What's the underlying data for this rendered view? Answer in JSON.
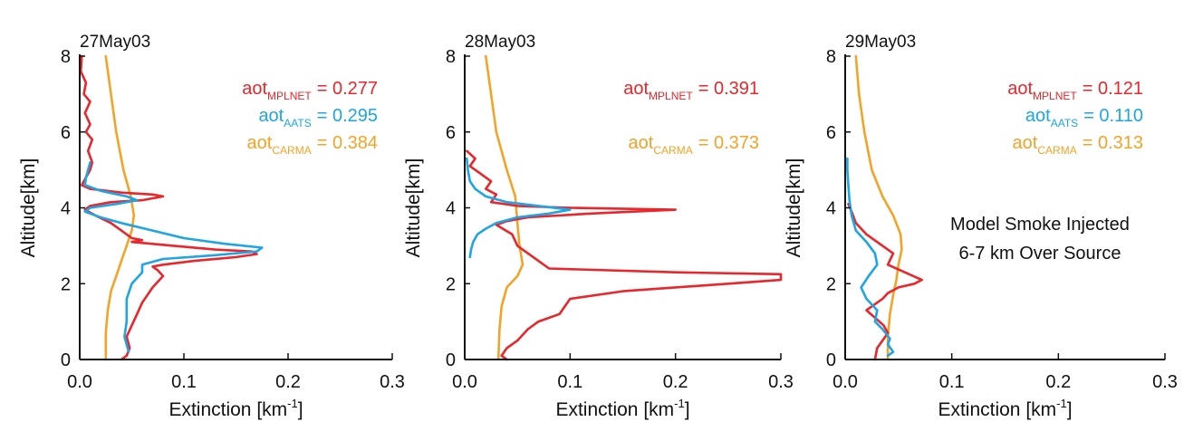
{
  "chart_data": [
    {
      "type": "line",
      "title": "27May03",
      "xlabel_main": "Extinction [km",
      "xlabel_sup": "-1",
      "xlabel_tail": "]",
      "ylabel": "Altitude[km]",
      "xlim": [
        0,
        0.3
      ],
      "ylim": [
        0,
        8
      ],
      "xticks": [
        "0.0",
        "0.1",
        "0.2",
        "0.3"
      ],
      "yticks": [
        "0",
        "2",
        "4",
        "6",
        "8"
      ],
      "annotations": [
        {
          "base": "aot",
          "sub": "MPLNET",
          "value": "= 0.277",
          "color": "#e8262b"
        },
        {
          "base": "aot",
          "sub": "AATS",
          "value": "= 0.295",
          "color": "#1fa4e6"
        },
        {
          "base": "aot",
          "sub": "CARMA",
          "value": "= 0.384",
          "color": "#f3a326"
        }
      ],
      "note": [],
      "series": [
        {
          "color": "#f3a326",
          "points": [
            [
              0.025,
              8
            ],
            [
              0.03,
              7
            ],
            [
              0.035,
              6
            ],
            [
              0.042,
              5
            ],
            [
              0.049,
              4.3
            ],
            [
              0.052,
              3.8
            ],
            [
              0.05,
              3.4
            ],
            [
              0.045,
              3
            ],
            [
              0.04,
              2.6
            ],
            [
              0.035,
              2.2
            ],
            [
              0.03,
              1.8
            ],
            [
              0.027,
              1.3
            ],
            [
              0.025,
              0.7
            ],
            [
              0.025,
              0
            ]
          ]
        },
        {
          "color": "#e8262b",
          "points": [
            [
              0.002,
              8
            ],
            [
              0.001,
              7.6
            ],
            [
              0.006,
              7.3
            ],
            [
              0.004,
              7
            ],
            [
              0.01,
              6.8
            ],
            [
              0.005,
              6.5
            ],
            [
              0.01,
              6.2
            ],
            [
              0.006,
              6
            ],
            [
              0.012,
              5.8
            ],
            [
              0.008,
              5.5
            ],
            [
              0.012,
              5.2
            ],
            [
              0.01,
              5
            ],
            [
              0.006,
              4.8
            ],
            [
              0.002,
              4.6
            ],
            [
              0.01,
              4.5
            ],
            [
              0.04,
              4.4
            ],
            [
              0.07,
              4.35
            ],
            [
              0.08,
              4.3
            ],
            [
              0.06,
              4.2
            ],
            [
              0.03,
              4.15
            ],
            [
              0.01,
              4.05
            ],
            [
              0.005,
              3.95
            ],
            [
              0.015,
              3.8
            ],
            [
              0.03,
              3.6
            ],
            [
              0.04,
              3.4
            ],
            [
              0.05,
              3.2
            ],
            [
              0.06,
              3.15
            ],
            [
              0.05,
              3.1
            ],
            [
              0.09,
              3
            ],
            [
              0.13,
              2.9
            ],
            [
              0.165,
              2.85
            ],
            [
              0.17,
              2.78
            ],
            [
              0.15,
              2.7
            ],
            [
              0.11,
              2.6
            ],
            [
              0.08,
              2.5
            ],
            [
              0.07,
              2.45
            ],
            [
              0.075,
              2.35
            ],
            [
              0.08,
              2.2
            ],
            [
              0.07,
              1.9
            ],
            [
              0.06,
              1.5
            ],
            [
              0.055,
              1.2
            ],
            [
              0.05,
              0.9
            ],
            [
              0.045,
              0.6
            ],
            [
              0.048,
              0.3
            ],
            [
              0.045,
              0.1
            ],
            [
              0.04,
              0
            ]
          ]
        },
        {
          "color": "#1fa4e6",
          "points": [
            [
              0.01,
              5.2
            ],
            [
              0.008,
              5
            ],
            [
              0.006,
              4.8
            ],
            [
              0.005,
              4.6
            ],
            [
              0.02,
              4.45
            ],
            [
              0.045,
              4.3
            ],
            [
              0.055,
              4.2
            ],
            [
              0.035,
              4.1
            ],
            [
              0.01,
              4
            ],
            [
              0.005,
              3.9
            ],
            [
              0.02,
              3.75
            ],
            [
              0.04,
              3.6
            ],
            [
              0.07,
              3.4
            ],
            [
              0.1,
              3.2
            ],
            [
              0.14,
              3.05
            ],
            [
              0.175,
              2.95
            ],
            [
              0.17,
              2.85
            ],
            [
              0.13,
              2.75
            ],
            [
              0.08,
              2.65
            ],
            [
              0.06,
              2.5
            ],
            [
              0.06,
              2.3
            ],
            [
              0.05,
              2
            ],
            [
              0.045,
              1.6
            ],
            [
              0.045,
              1
            ],
            [
              0.043,
              0.6
            ],
            [
              0.047,
              0.2
            ]
          ]
        }
      ]
    },
    {
      "type": "line",
      "title": "28May03",
      "xlabel_main": "Extinction [km",
      "xlabel_sup": "-1",
      "xlabel_tail": "]",
      "ylabel": "Altitude[km]",
      "xlim": [
        0,
        0.3
      ],
      "ylim": [
        0,
        8
      ],
      "xticks": [
        "0.0",
        "0.1",
        "0.2",
        "0.3"
      ],
      "yticks": [
        "0",
        "2",
        "4",
        "6",
        "8"
      ],
      "annotations": [
        {
          "base": "aot",
          "sub": "MPLNET",
          "value": "= 0.391",
          "color": "#e8262b"
        },
        {
          "base": "aot",
          "sub": "CARMA",
          "value": "= 0.373",
          "color": "#f3a326"
        }
      ],
      "note": [],
      "series": [
        {
          "color": "#f3a326",
          "points": [
            [
              0.02,
              8
            ],
            [
              0.025,
              7
            ],
            [
              0.03,
              6
            ],
            [
              0.04,
              5
            ],
            [
              0.048,
              4.3
            ],
            [
              0.05,
              3.6
            ],
            [
              0.052,
              3
            ],
            [
              0.055,
              2.5
            ],
            [
              0.05,
              2.2
            ],
            [
              0.04,
              1.9
            ],
            [
              0.035,
              1.4
            ],
            [
              0.033,
              0.8
            ],
            [
              0.032,
              0
            ]
          ]
        },
        {
          "color": "#e8262b",
          "points": [
            [
              0.002,
              5.5
            ],
            [
              0.01,
              5.3
            ],
            [
              0.005,
              5.1
            ],
            [
              0.015,
              4.9
            ],
            [
              0.025,
              4.7
            ],
            [
              0.02,
              4.5
            ],
            [
              0.03,
              4.35
            ],
            [
              0.025,
              4.15
            ],
            [
              0.05,
              4.05
            ],
            [
              0.1,
              4
            ],
            [
              0.2,
              3.95
            ],
            [
              0.12,
              3.85
            ],
            [
              0.06,
              3.75
            ],
            [
              0.04,
              3.65
            ],
            [
              0.03,
              3.55
            ],
            [
              0.045,
              3.3
            ],
            [
              0.05,
              3
            ],
            [
              0.06,
              2.8
            ],
            [
              0.07,
              2.6
            ],
            [
              0.08,
              2.4
            ],
            [
              0.2,
              2.3
            ],
            [
              0.3,
              2.25
            ],
            [
              0.3,
              2.1
            ],
            [
              0.25,
              2
            ],
            [
              0.15,
              1.8
            ],
            [
              0.1,
              1.6
            ],
            [
              0.095,
              1.4
            ],
            [
              0.09,
              1.2
            ],
            [
              0.07,
              1
            ],
            [
              0.06,
              0.8
            ],
            [
              0.05,
              0.5
            ],
            [
              0.04,
              0.3
            ],
            [
              0.035,
              0.1
            ],
            [
              0.04,
              0
            ]
          ]
        },
        {
          "color": "#1fa4e6",
          "points": [
            [
              0.002,
              5.3
            ],
            [
              0.003,
              5
            ],
            [
              0.005,
              4.7
            ],
            [
              0.01,
              4.5
            ],
            [
              0.02,
              4.3
            ],
            [
              0.04,
              4.15
            ],
            [
              0.07,
              4.05
            ],
            [
              0.1,
              3.95
            ],
            [
              0.08,
              3.85
            ],
            [
              0.05,
              3.75
            ],
            [
              0.03,
              3.6
            ],
            [
              0.02,
              3.45
            ],
            [
              0.012,
              3.3
            ],
            [
              0.008,
              3.1
            ],
            [
              0.006,
              2.9
            ],
            [
              0.005,
              2.7
            ]
          ]
        }
      ]
    },
    {
      "type": "line",
      "title": "29May03",
      "xlabel_main": "Extinction [km",
      "xlabel_sup": "-1",
      "xlabel_tail": "]",
      "ylabel": "Altitude[km]",
      "xlim": [
        0,
        0.3
      ],
      "ylim": [
        0,
        8
      ],
      "xticks": [
        "0.0",
        "0.1",
        "0.2",
        "0.3"
      ],
      "yticks": [
        "0",
        "2",
        "4",
        "6",
        "8"
      ],
      "annotations": [
        {
          "base": "aot",
          "sub": "MPLNET",
          "value": "= 0.121",
          "color": "#e8262b"
        },
        {
          "base": "aot",
          "sub": "AATS",
          "value": "= 0.110",
          "color": "#1fa4e6"
        },
        {
          "base": "aot",
          "sub": "CARMA",
          "value": "= 0.313",
          "color": "#f3a326"
        }
      ],
      "note": [
        "Model Smoke Injected",
        "6-7 km Over Source"
      ],
      "series": [
        {
          "color": "#f3a326",
          "points": [
            [
              0.01,
              8
            ],
            [
              0.013,
              7
            ],
            [
              0.018,
              6
            ],
            [
              0.025,
              5
            ],
            [
              0.035,
              4.3
            ],
            [
              0.045,
              3.8
            ],
            [
              0.052,
              3.3
            ],
            [
              0.053,
              2.9
            ],
            [
              0.05,
              2.5
            ],
            [
              0.048,
              2.1
            ],
            [
              0.045,
              1.7
            ],
            [
              0.042,
              1.2
            ],
            [
              0.04,
              0.6
            ],
            [
              0.04,
              0
            ]
          ]
        },
        {
          "color": "#e8262b",
          "points": [
            [
              0.003,
              4.1
            ],
            [
              0.006,
              3.9
            ],
            [
              0.01,
              3.6
            ],
            [
              0.02,
              3.3
            ],
            [
              0.035,
              3
            ],
            [
              0.045,
              2.8
            ],
            [
              0.04,
              2.5
            ],
            [
              0.06,
              2.25
            ],
            [
              0.072,
              2.1
            ],
            [
              0.065,
              2
            ],
            [
              0.05,
              1.9
            ],
            [
              0.04,
              1.75
            ],
            [
              0.035,
              1.6
            ],
            [
              0.03,
              1.5
            ],
            [
              0.02,
              1.3
            ],
            [
              0.028,
              1.1
            ],
            [
              0.036,
              0.9
            ],
            [
              0.04,
              0.7
            ],
            [
              0.035,
              0.5
            ],
            [
              0.03,
              0.3
            ],
            [
              0.028,
              0
            ]
          ]
        },
        {
          "color": "#1fa4e6",
          "points": [
            [
              0.002,
              5.3
            ],
            [
              0.002,
              5
            ],
            [
              0.003,
              4.6
            ],
            [
              0.004,
              4.2
            ],
            [
              0.006,
              3.8
            ],
            [
              0.01,
              3.4
            ],
            [
              0.02,
              3.1
            ],
            [
              0.028,
              2.8
            ],
            [
              0.03,
              2.5
            ],
            [
              0.022,
              2.2
            ],
            [
              0.015,
              1.9
            ],
            [
              0.02,
              1.6
            ],
            [
              0.03,
              1.3
            ],
            [
              0.028,
              1
            ],
            [
              0.035,
              0.8
            ],
            [
              0.042,
              0.55
            ],
            [
              0.04,
              0.4
            ],
            [
              0.045,
              0.2
            ],
            [
              0.04,
              0.1
            ]
          ]
        }
      ]
    }
  ]
}
